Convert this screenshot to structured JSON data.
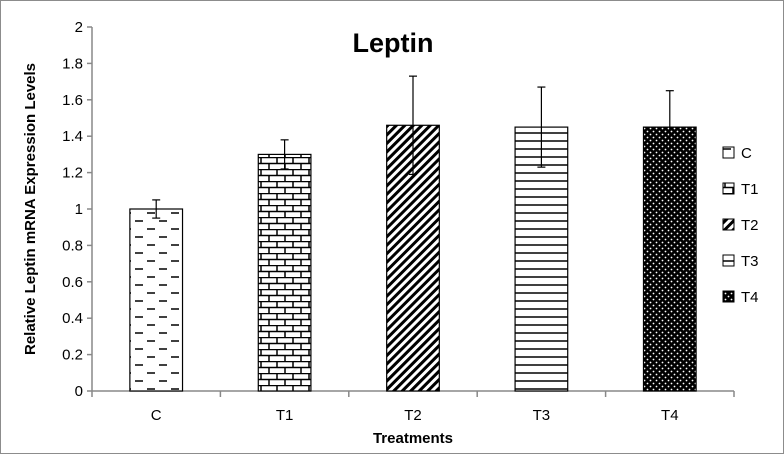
{
  "chart_data": {
    "type": "bar",
    "title": "Leptin",
    "xlabel": "Treatments",
    "ylabel": "Relative Leptin mRNA Expression Levels",
    "categories": [
      "C",
      "T1",
      "T2",
      "T3",
      "T4"
    ],
    "values": [
      1.0,
      1.3,
      1.46,
      1.45,
      1.45
    ],
    "error_upper": [
      0.05,
      0.08,
      0.27,
      0.22,
      0.2
    ],
    "error_lower": [
      0.05,
      0.08,
      0.27,
      0.22,
      0.2
    ],
    "ylim": [
      0,
      2
    ],
    "yticks": [
      "0",
      "0.2",
      "0.4",
      "0.6",
      "0.8",
      "1",
      "1.2",
      "1.4",
      "1.6",
      "1.8",
      "2"
    ],
    "patterns": [
      "dashes",
      "bricks",
      "diagonal-stripes",
      "horizontal-lines",
      "dots"
    ],
    "legend": {
      "placement": "right",
      "entries": [
        "C",
        "T1",
        "T2",
        "T3",
        "T4"
      ]
    },
    "grid": false,
    "colors": {
      "bar_outline": "#000000",
      "pattern_fg": "#000000",
      "bar_bg": "#ffffff"
    }
  }
}
